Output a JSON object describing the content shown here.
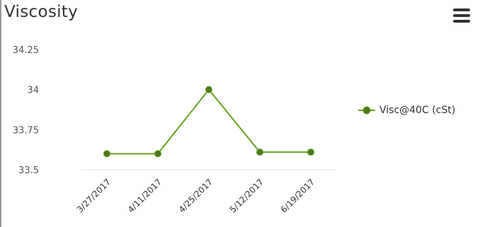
{
  "title": "Viscosity",
  "menu": {
    "icon": "hamburger-menu-icon"
  },
  "colors": {
    "series": "#6aa121",
    "point": "#4a7a1c"
  },
  "chart_data": {
    "type": "line",
    "categories": [
      "3/27/2017",
      "4/11/2017",
      "4/25/2017",
      "5/12/2017",
      "6/19/2017"
    ],
    "series": [
      {
        "name": "Visc@40C (cSt)",
        "values": [
          33.6,
          33.6,
          34.0,
          33.61,
          33.61
        ]
      }
    ],
    "yticks": [
      "34.25",
      "34",
      "33.75",
      "33.5"
    ],
    "ytick_values": [
      34.25,
      34.0,
      33.75,
      33.5
    ],
    "ylim": [
      33.5,
      34.25
    ],
    "grid": false,
    "legend_position": "right"
  }
}
